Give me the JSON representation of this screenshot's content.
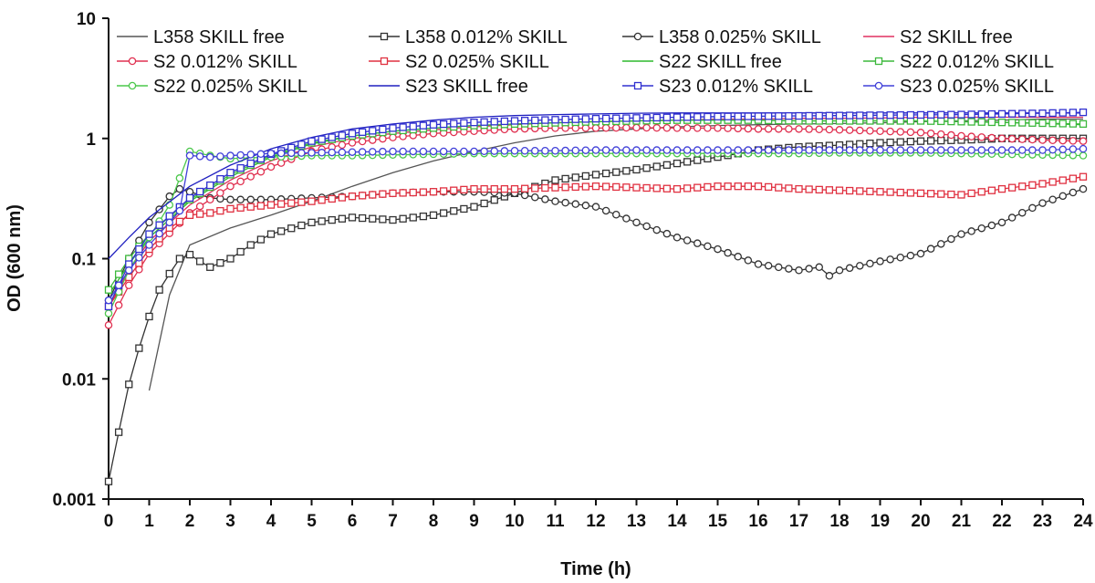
{
  "chart_data": {
    "type": "line",
    "xlabel": "Time (h)",
    "ylabel": "OD (600 nm)",
    "xlim": [
      0,
      24
    ],
    "ylim": [
      0.001,
      10
    ],
    "y_scale": "log",
    "x_ticks": [
      "0",
      "1",
      "2",
      "3",
      "4",
      "5",
      "6",
      "7",
      "8",
      "9",
      "10",
      "11",
      "12",
      "13",
      "14",
      "15",
      "16",
      "17",
      "18",
      "19",
      "20",
      "21",
      "22",
      "23",
      "24"
    ],
    "y_ticks": [
      "0.001",
      "0.01",
      "0.1",
      "1",
      "10"
    ],
    "grid": false,
    "legend_position": "top",
    "series": [
      {
        "name": "L358 SKILL free",
        "color": "#555555",
        "marker": "none",
        "x": [
          1,
          1.5,
          2,
          3,
          4,
          5,
          6,
          7,
          8,
          9,
          10,
          11,
          12,
          13,
          14,
          15,
          16,
          17,
          18,
          19,
          20,
          21,
          22,
          23,
          24
        ],
        "y": [
          0.008,
          0.05,
          0.13,
          0.18,
          0.23,
          0.3,
          0.4,
          0.52,
          0.65,
          0.78,
          0.92,
          1.05,
          1.15,
          1.2,
          1.25,
          1.28,
          1.3,
          1.32,
          1.33,
          1.35,
          1.38,
          1.4,
          1.42,
          1.45,
          1.45
        ]
      },
      {
        "name": "L358 0.012% SKILL",
        "color": "#333333",
        "marker": "square",
        "x": [
          0,
          0.25,
          0.5,
          0.75,
          1,
          1.25,
          1.5,
          1.75,
          2,
          2.25,
          2.5,
          3,
          3.5,
          4,
          5,
          6,
          7,
          8,
          9,
          10,
          11,
          12,
          13,
          14,
          15,
          16,
          17,
          18,
          19,
          20,
          21,
          22,
          23,
          24
        ],
        "y": [
          0.0014,
          0.0036,
          0.009,
          0.018,
          0.033,
          0.055,
          0.075,
          0.1,
          0.108,
          0.095,
          0.085,
          0.1,
          0.13,
          0.16,
          0.2,
          0.22,
          0.21,
          0.23,
          0.27,
          0.35,
          0.45,
          0.5,
          0.55,
          0.62,
          0.7,
          0.8,
          0.85,
          0.88,
          0.92,
          0.95,
          0.97,
          1.0,
          1.0,
          1.0
        ]
      },
      {
        "name": "L358 0.025% SKILL",
        "color": "#333333",
        "marker": "circle",
        "x": [
          0,
          0.5,
          1,
          1.5,
          1.75,
          2,
          2.5,
          3,
          4,
          5,
          6,
          7,
          8,
          9,
          10,
          11,
          12,
          13,
          14,
          15,
          16,
          17,
          17.5,
          17.75,
          18,
          19,
          20,
          21,
          22,
          23,
          24
        ],
        "y": [
          0.045,
          0.1,
          0.2,
          0.33,
          0.38,
          0.36,
          0.32,
          0.31,
          0.31,
          0.32,
          0.33,
          0.35,
          0.36,
          0.36,
          0.35,
          0.3,
          0.27,
          0.2,
          0.15,
          0.12,
          0.09,
          0.08,
          0.085,
          0.072,
          0.08,
          0.095,
          0.11,
          0.16,
          0.2,
          0.29,
          0.38
        ]
      },
      {
        "name": "S2 SKILL free",
        "color": "#e03060",
        "marker": "none",
        "x": [
          0,
          0.5,
          1,
          2,
          3,
          4,
          5,
          6,
          7,
          8,
          9,
          10,
          11,
          12,
          13,
          14,
          15,
          16,
          17,
          18,
          19,
          20,
          21,
          22,
          23,
          24
        ],
        "y": [
          0.04,
          0.08,
          0.14,
          0.28,
          0.45,
          0.65,
          0.85,
          1.0,
          1.1,
          1.18,
          1.25,
          1.3,
          1.35,
          1.38,
          1.4,
          1.42,
          1.45,
          1.45,
          1.47,
          1.47,
          1.48,
          1.5,
          1.5,
          1.5,
          1.5,
          1.5
        ]
      },
      {
        "name": "S2 0.012% SKILL",
        "color": "#e03050",
        "marker": "circle",
        "x": [
          0,
          0.5,
          1,
          2,
          3,
          4,
          5,
          6,
          7,
          8,
          9,
          10,
          11,
          12,
          13,
          14,
          15,
          16,
          17,
          18,
          19,
          20,
          21,
          22,
          23,
          24
        ],
        "y": [
          0.028,
          0.06,
          0.11,
          0.24,
          0.4,
          0.58,
          0.78,
          0.92,
          1.02,
          1.1,
          1.15,
          1.2,
          1.22,
          1.22,
          1.23,
          1.22,
          1.22,
          1.2,
          1.2,
          1.18,
          1.15,
          1.12,
          1.05,
          1.0,
          0.97,
          0.95
        ]
      },
      {
        "name": "S2 0.025% SKILL",
        "color": "#e03040",
        "marker": "square",
        "x": [
          0,
          0.5,
          1,
          1.5,
          2,
          2.5,
          3,
          4,
          5,
          6,
          7,
          8,
          9,
          10,
          11,
          12,
          13,
          14,
          15,
          16,
          17,
          18,
          19,
          20,
          21,
          22,
          23,
          24
        ],
        "y": [
          0.04,
          0.07,
          0.12,
          0.18,
          0.23,
          0.24,
          0.26,
          0.28,
          0.3,
          0.33,
          0.35,
          0.36,
          0.38,
          0.38,
          0.39,
          0.4,
          0.39,
          0.38,
          0.4,
          0.4,
          0.38,
          0.37,
          0.36,
          0.35,
          0.34,
          0.38,
          0.42,
          0.48
        ]
      },
      {
        "name": "S22 SKILL free",
        "color": "#2db82d",
        "marker": "none",
        "x": [
          0,
          0.5,
          1,
          2,
          3,
          4,
          5,
          6,
          7,
          8,
          9,
          10,
          11,
          12,
          13,
          14,
          15,
          16,
          17,
          18,
          19,
          20,
          21,
          22,
          23,
          24
        ],
        "y": [
          0.05,
          0.09,
          0.15,
          0.3,
          0.48,
          0.7,
          0.9,
          1.05,
          1.15,
          1.22,
          1.28,
          1.32,
          1.35,
          1.38,
          1.4,
          1.42,
          1.42,
          1.42,
          1.4,
          1.4,
          1.4,
          1.4,
          1.38,
          1.36,
          1.33,
          1.3
        ]
      },
      {
        "name": "S22 0.012% SKILL",
        "color": "#3cb83c",
        "marker": "square",
        "x": [
          0,
          0.5,
          1,
          2,
          3,
          4,
          5,
          6,
          7,
          8,
          9,
          10,
          11,
          12,
          13,
          14,
          15,
          16,
          17,
          18,
          19,
          20,
          21,
          22,
          23,
          24
        ],
        "y": [
          0.055,
          0.1,
          0.16,
          0.31,
          0.5,
          0.72,
          0.92,
          1.05,
          1.15,
          1.22,
          1.28,
          1.32,
          1.35,
          1.38,
          1.4,
          1.42,
          1.42,
          1.42,
          1.4,
          1.4,
          1.4,
          1.4,
          1.38,
          1.36,
          1.34,
          1.32
        ]
      },
      {
        "name": "S22 0.025% SKILL",
        "color": "#4cc84c",
        "marker": "circle",
        "x": [
          0,
          0.5,
          1,
          1.5,
          2,
          2.5,
          3,
          4,
          5,
          6,
          7,
          8,
          9,
          10,
          11,
          12,
          13,
          14,
          15,
          16,
          17,
          18,
          19,
          20,
          21,
          22,
          23,
          24
        ],
        "y": [
          0.035,
          0.08,
          0.15,
          0.28,
          0.78,
          0.72,
          0.68,
          0.7,
          0.72,
          0.72,
          0.73,
          0.74,
          0.75,
          0.75,
          0.75,
          0.75,
          0.75,
          0.75,
          0.75,
          0.75,
          0.75,
          0.76,
          0.76,
          0.76,
          0.75,
          0.74,
          0.73,
          0.72
        ]
      },
      {
        "name": "S23 SKILL free",
        "color": "#2020c0",
        "marker": "none",
        "x": [
          0,
          0.5,
          1,
          2,
          3,
          4,
          5,
          6,
          7,
          8,
          9,
          10,
          11,
          12,
          13,
          14,
          15,
          16,
          17,
          18,
          19,
          20,
          21,
          22,
          23,
          24
        ],
        "y": [
          0.1,
          0.15,
          0.22,
          0.4,
          0.6,
          0.82,
          1.02,
          1.2,
          1.32,
          1.42,
          1.5,
          1.55,
          1.58,
          1.6,
          1.62,
          1.63,
          1.63,
          1.63,
          1.63,
          1.63,
          1.63,
          1.63,
          1.63,
          1.63,
          1.63,
          1.63
        ]
      },
      {
        "name": "S23 0.012% SKILL",
        "color": "#3030d0",
        "marker": "square",
        "x": [
          0,
          0.5,
          1,
          2,
          3,
          4,
          5,
          6,
          7,
          8,
          9,
          10,
          11,
          12,
          13,
          14,
          15,
          16,
          17,
          18,
          19,
          20,
          21,
          22,
          23,
          24
        ],
        "y": [
          0.04,
          0.09,
          0.16,
          0.32,
          0.52,
          0.74,
          0.95,
          1.1,
          1.22,
          1.3,
          1.36,
          1.4,
          1.43,
          1.46,
          1.48,
          1.5,
          1.52,
          1.53,
          1.54,
          1.55,
          1.56,
          1.57,
          1.58,
          1.6,
          1.62,
          1.65
        ]
      },
      {
        "name": "S23 0.025% SKILL",
        "color": "#4040d8",
        "marker": "circle",
        "x": [
          0,
          0.5,
          1,
          1.5,
          1.75,
          2,
          2.5,
          3,
          4,
          5,
          6,
          7,
          8,
          9,
          10,
          11,
          12,
          13,
          14,
          15,
          16,
          17,
          18,
          19,
          20,
          21,
          22,
          23,
          24
        ],
        "y": [
          0.045,
          0.08,
          0.13,
          0.2,
          0.25,
          0.72,
          0.7,
          0.72,
          0.75,
          0.76,
          0.77,
          0.78,
          0.78,
          0.78,
          0.79,
          0.79,
          0.8,
          0.8,
          0.8,
          0.8,
          0.8,
          0.8,
          0.8,
          0.8,
          0.8,
          0.8,
          0.8,
          0.8,
          0.82
        ]
      }
    ]
  }
}
